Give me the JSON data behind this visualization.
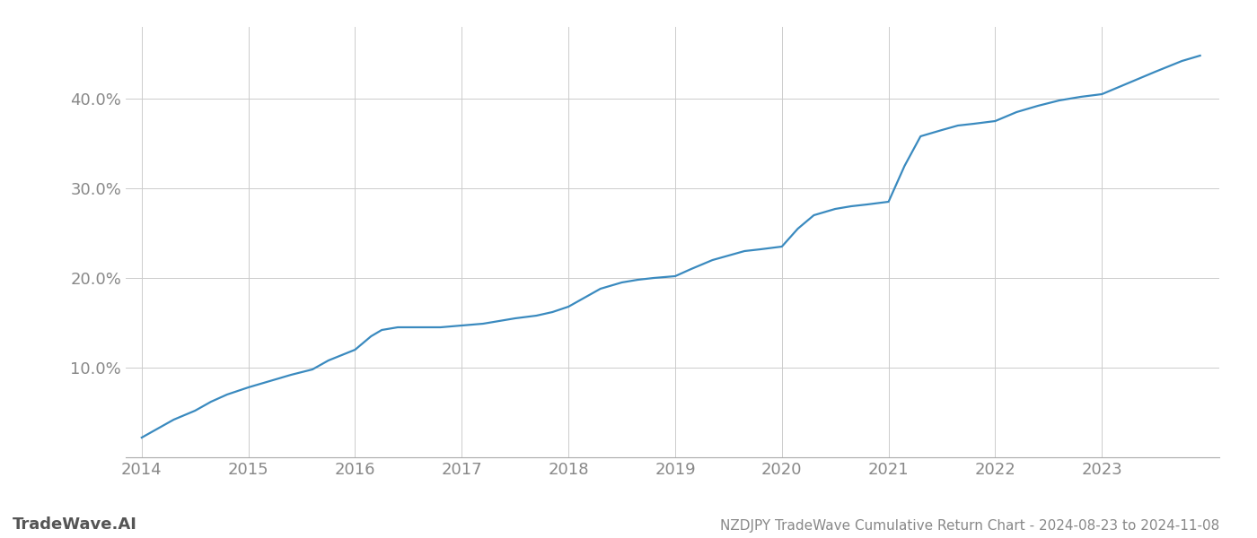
{
  "title": "NZDJPY TradeWave Cumulative Return Chart - 2024-08-23 to 2024-11-08",
  "watermark": "TradeWave.AI",
  "line_color": "#3a8abf",
  "background_color": "#ffffff",
  "grid_color": "#cccccc",
  "x_years": [
    2014,
    2015,
    2016,
    2017,
    2018,
    2019,
    2020,
    2021,
    2022,
    2023
  ],
  "y_ticks": [
    10.0,
    20.0,
    30.0,
    40.0
  ],
  "x_data": [
    2014.0,
    2014.15,
    2014.3,
    2014.5,
    2014.65,
    2014.8,
    2015.0,
    2015.2,
    2015.4,
    2015.6,
    2015.75,
    2016.0,
    2016.15,
    2016.25,
    2016.4,
    2016.6,
    2016.8,
    2017.0,
    2017.2,
    2017.35,
    2017.5,
    2017.7,
    2017.85,
    2018.0,
    2018.15,
    2018.3,
    2018.5,
    2018.65,
    2018.8,
    2019.0,
    2019.15,
    2019.35,
    2019.5,
    2019.65,
    2019.8,
    2020.0,
    2020.15,
    2020.3,
    2020.5,
    2020.65,
    2020.8,
    2021.0,
    2021.15,
    2021.3,
    2021.5,
    2021.65,
    2021.8,
    2022.0,
    2022.2,
    2022.4,
    2022.6,
    2022.8,
    2023.0,
    2023.2,
    2023.5,
    2023.75,
    2023.92
  ],
  "y_data": [
    2.2,
    3.2,
    4.2,
    5.2,
    6.2,
    7.0,
    7.8,
    8.5,
    9.2,
    9.8,
    10.8,
    12.0,
    13.5,
    14.2,
    14.5,
    14.5,
    14.5,
    14.7,
    14.9,
    15.2,
    15.5,
    15.8,
    16.2,
    16.8,
    17.8,
    18.8,
    19.5,
    19.8,
    20.0,
    20.2,
    21.0,
    22.0,
    22.5,
    23.0,
    23.2,
    23.5,
    25.5,
    27.0,
    27.7,
    28.0,
    28.2,
    28.5,
    32.5,
    35.8,
    36.5,
    37.0,
    37.2,
    37.5,
    38.5,
    39.2,
    39.8,
    40.2,
    40.5,
    41.5,
    43.0,
    44.2,
    44.8
  ],
  "ylim": [
    0,
    48
  ],
  "xlim": [
    2013.85,
    2024.1
  ],
  "title_fontsize": 11,
  "tick_fontsize": 13,
  "watermark_fontsize": 13,
  "line_width": 1.6
}
